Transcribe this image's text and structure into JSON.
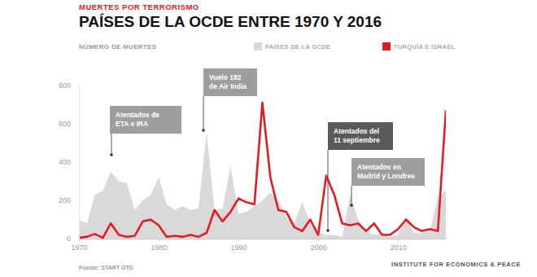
{
  "chart_data": {
    "type": "line",
    "subtitle": "MUERTES POR TERRORISMO",
    "title": "PAÍSES DE LA OCDE ENTRE 1970 Y 2016",
    "y_label": "NÚMERO DE MUERTES",
    "source": "Fuente: START GTD",
    "publisher": "INSTITUTE FOR ECONOMICS & PEACE",
    "x": [
      1970,
      1971,
      1972,
      1973,
      1974,
      1975,
      1976,
      1977,
      1978,
      1979,
      1980,
      1981,
      1982,
      1983,
      1984,
      1985,
      1986,
      1987,
      1988,
      1989,
      1990,
      1991,
      1992,
      1993,
      1994,
      1995,
      1996,
      1997,
      1998,
      1999,
      2000,
      2001,
      2002,
      2003,
      2004,
      2005,
      2006,
      2007,
      2008,
      2009,
      2010,
      2011,
      2012,
      2013,
      2014,
      2015,
      2016
    ],
    "xlim": [
      1970,
      2016
    ],
    "xticks": [
      1970,
      1980,
      1990,
      2000,
      2010
    ],
    "ylim": [
      0,
      800
    ],
    "yticks": [
      0,
      200,
      400,
      600,
      800
    ],
    "grid": false,
    "legend": "top",
    "series": [
      {
        "name": "PAÍSES DE LA OCDE",
        "type": "area",
        "color": "#d9d9d9",
        "values": [
          100,
          80,
          230,
          250,
          350,
          300,
          290,
          150,
          200,
          230,
          320,
          180,
          150,
          170,
          150,
          160,
          560,
          150,
          160,
          380,
          130,
          140,
          170,
          200,
          240,
          200,
          110,
          80,
          190,
          80,
          30,
          20,
          20,
          10,
          230,
          100,
          40,
          20,
          30,
          10,
          20,
          110,
          30,
          30,
          40,
          220,
          250
        ]
      },
      {
        "name": "TURQUÍA E ISRAEL",
        "type": "line",
        "color": "#e31b23",
        "values": [
          5,
          10,
          25,
          5,
          80,
          20,
          10,
          15,
          90,
          100,
          70,
          10,
          15,
          10,
          20,
          10,
          30,
          150,
          90,
          140,
          210,
          190,
          180,
          710,
          320,
          150,
          140,
          60,
          40,
          100,
          20,
          330,
          230,
          80,
          70,
          80,
          40,
          80,
          20,
          20,
          50,
          100,
          60,
          40,
          50,
          40,
          670
        ]
      }
    ],
    "annotations": [
      "Atentados de\nETA e IRA",
      "Vuelo 182\nde Air India",
      "Atentados del\n11 septiembre",
      "Atentados en\nMadrid y Londres"
    ]
  }
}
